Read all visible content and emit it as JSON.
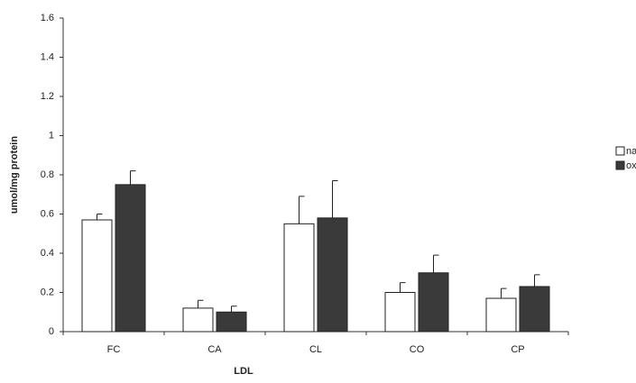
{
  "chart_data": {
    "type": "bar",
    "x_label": "LDL",
    "y_label": "umol/mg protein",
    "categories": [
      "FC",
      "CA",
      "CL",
      "CO",
      "CP"
    ],
    "series": [
      {
        "name": "native",
        "color": "#ffffff",
        "values": [
          0.57,
          0.12,
          0.55,
          0.2,
          0.17
        ],
        "errors": [
          0.03,
          0.04,
          0.14,
          0.05,
          0.05
        ]
      },
      {
        "name": "ox",
        "color": "#3a3a3a",
        "values": [
          0.75,
          0.1,
          0.58,
          0.3,
          0.23
        ],
        "errors": [
          0.07,
          0.03,
          0.19,
          0.09,
          0.06
        ]
      }
    ],
    "ylim": [
      0,
      1.6
    ],
    "yticks": [
      0,
      0.2,
      0.4,
      0.6,
      0.8,
      1,
      1.2,
      1.4,
      1.6
    ],
    "legend": "right"
  }
}
